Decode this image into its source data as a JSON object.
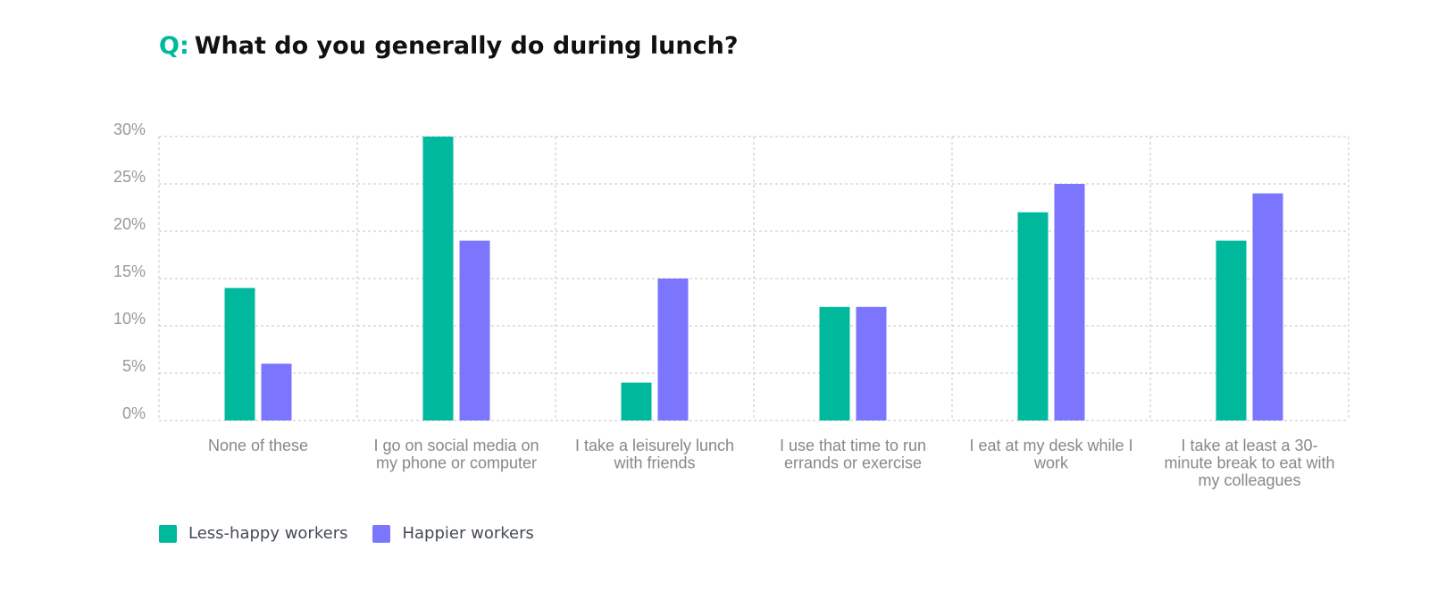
{
  "title": {
    "prefix": "Q:",
    "text": "What do you generally do during lunch?"
  },
  "colors": {
    "accent": "#00b89c",
    "series1": "#00b89c",
    "series2": "#7b76fd"
  },
  "chart_data": {
    "type": "bar",
    "title": "What do you generally do during lunch?",
    "ylim": [
      0,
      30
    ],
    "yticks": [
      "0%",
      "5%",
      "10%",
      "15%",
      "20%",
      "25%",
      "30%"
    ],
    "grid": true,
    "legend_position": "bottom-left",
    "categories": [
      [
        "None of these"
      ],
      [
        "I go on social media on",
        "my phone or computer"
      ],
      [
        "I take a leisurely lunch",
        "with friends"
      ],
      [
        "I use that time to run",
        "errands or exercise"
      ],
      [
        "I eat at my desk while I",
        "work"
      ],
      [
        "I take at least a 30-",
        "minute break to eat with",
        "my colleagues"
      ]
    ],
    "series": [
      {
        "name": "Less-happy workers",
        "color": "#00b89c",
        "values": [
          14,
          30,
          4,
          12,
          22,
          19
        ]
      },
      {
        "name": "Happier workers",
        "color": "#7b76fd",
        "values": [
          6,
          19,
          15,
          12,
          25,
          24
        ]
      }
    ]
  }
}
